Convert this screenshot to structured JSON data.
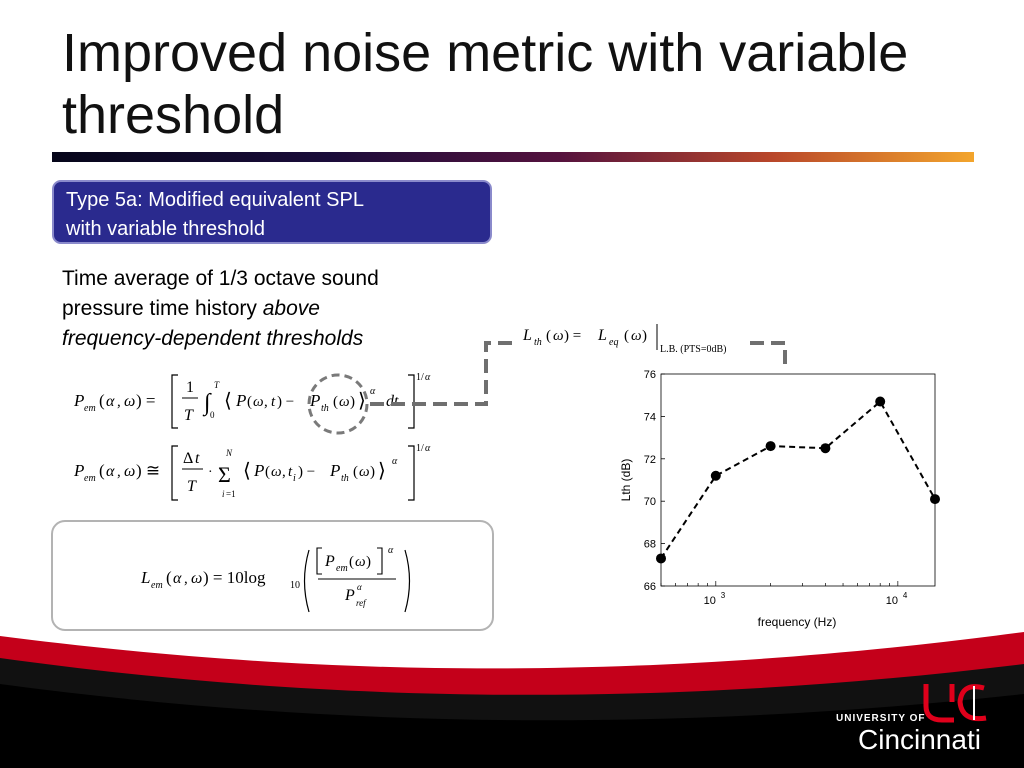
{
  "slide": {
    "title": "Improved noise metric with variable threshold",
    "badge_line1": "Type 5a: Modified equivalent SPL",
    "badge_line2": "with variable threshold",
    "desc_line1": "Time average of 1/3 octave sound",
    "desc_line2_plain": "pressure time history ",
    "desc_line2_italic": "above",
    "desc_line3_italic": "frequency-dependent thresholds"
  },
  "equations": {
    "threshold_def_lhs": "Lth(ω) = Leq(ω)",
    "threshold_def_cond": "L.B. (PTS=0dB)",
    "eq1": "Pem(α,ω) = [ (1/T) ∫0T ⟨P(ω,t) − Pth(ω)⟩α dt ]1/α",
    "eq2": "Pem(α,ω) ≅ [ (Δt/T) · Σi=1N ⟨P(ω,ti) − Pth(ω)⟩α ]1/α",
    "eq3": "Lem(α,ω) = 10log10( [Pem(ω)]α / Prefα )"
  },
  "logo": {
    "line1": "UNIVERSITY OF",
    "line2": "Cincinnati",
    "brand_color": "#e0001b"
  },
  "chart_data": {
    "type": "line",
    "xscale": "log",
    "xlabel": "frequency (Hz)",
    "ylabel": "Lth (dB)",
    "ylim": [
      66,
      76
    ],
    "xlim": [
      500,
      16000
    ],
    "yticks": [
      66,
      68,
      70,
      72,
      74,
      76
    ],
    "xticks": [
      {
        "value": 1000,
        "label": "10",
        "exp": "3"
      },
      {
        "value": 10000,
        "label": "10",
        "exp": "4"
      }
    ],
    "x": [
      500,
      1000,
      2000,
      4000,
      8000,
      16000
    ],
    "y": [
      67.3,
      71.2,
      72.6,
      72.5,
      74.7,
      70.1
    ],
    "line_style": "dashed",
    "marker": "filled-circle",
    "color": "#000000"
  }
}
